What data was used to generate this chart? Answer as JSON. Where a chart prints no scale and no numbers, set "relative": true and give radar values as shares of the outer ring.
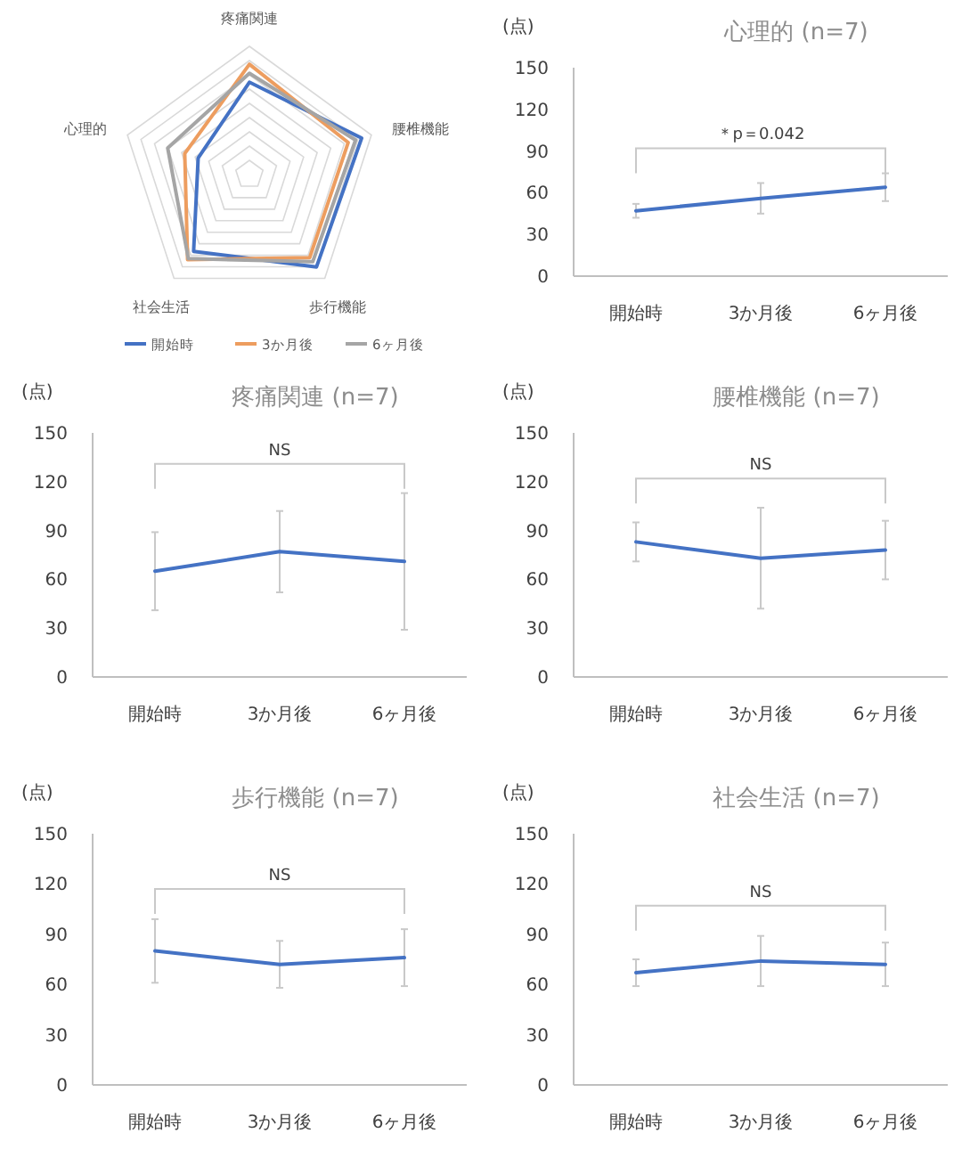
{
  "chart_data": [
    {
      "type": "radar",
      "categories": [
        "疼痛関連",
        "腰椎機能",
        "歩行機能",
        "社会生活",
        "心理的"
      ],
      "relative": true,
      "grid": true,
      "legend": "bottom",
      "series": [
        {
          "name": "開始時",
          "color": "#4472c4",
          "values": [
            0.72,
            0.92,
            0.89,
            0.74,
            0.42
          ]
        },
        {
          "name": "3か月後",
          "color": "#ed9d5f",
          "values": [
            0.86,
            0.81,
            0.8,
            0.82,
            0.53
          ]
        },
        {
          "name": "6ヶ月後",
          "color": "#a5a5a5",
          "values": [
            0.79,
            0.87,
            0.84,
            0.81,
            0.67
          ]
        }
      ]
    },
    {
      "type": "line",
      "title": "心理的 (n=7)",
      "ylabel": "(点)",
      "categories": [
        "開始時",
        "3か月後",
        "6ヶ月後"
      ],
      "ylim": [
        0,
        150
      ],
      "yticks": [
        0,
        30,
        60,
        90,
        120,
        150
      ],
      "annotations": [
        "＊p＝0.042"
      ],
      "series": [
        {
          "color": "#4472c4",
          "values": [
            47,
            56,
            64
          ],
          "errors": [
            5,
            11,
            10
          ]
        }
      ]
    },
    {
      "type": "line",
      "title": "疼痛関連 (n=7)",
      "ylabel": "(点)",
      "categories": [
        "開始時",
        "3か月後",
        "6ヶ月後"
      ],
      "ylim": [
        0,
        150
      ],
      "yticks": [
        0,
        30,
        60,
        90,
        120,
        150
      ],
      "annotations": [
        "NS"
      ],
      "series": [
        {
          "color": "#4472c4",
          "values": [
            65,
            77,
            71
          ],
          "errors": [
            24,
            25,
            42
          ]
        }
      ]
    },
    {
      "type": "line",
      "title": "腰椎機能 (n=7)",
      "ylabel": "(点)",
      "categories": [
        "開始時",
        "3か月後",
        "6ヶ月後"
      ],
      "ylim": [
        0,
        150
      ],
      "yticks": [
        0,
        30,
        60,
        90,
        120,
        150
      ],
      "annotations": [
        "NS"
      ],
      "series": [
        {
          "color": "#4472c4",
          "values": [
            83,
            73,
            78
          ],
          "errors": [
            12,
            31,
            18
          ]
        }
      ]
    },
    {
      "type": "line",
      "title": "歩行機能 (n=7)",
      "ylabel": "(点)",
      "categories": [
        "開始時",
        "3か月後",
        "6ヶ月後"
      ],
      "ylim": [
        0,
        150
      ],
      "yticks": [
        0,
        30,
        60,
        90,
        120,
        150
      ],
      "annotations": [
        "NS"
      ],
      "series": [
        {
          "color": "#4472c4",
          "values": [
            80,
            72,
            76
          ],
          "errors": [
            19,
            14,
            17
          ]
        }
      ]
    },
    {
      "type": "line",
      "title": "社会生活 (n=7)",
      "ylabel": "(点)",
      "categories": [
        "開始時",
        "3か月後",
        "6ヶ月後"
      ],
      "ylim": [
        0,
        150
      ],
      "yticks": [
        0,
        30,
        60,
        90,
        120,
        150
      ],
      "annotations": [
        "NS"
      ],
      "series": [
        {
          "color": "#4472c4",
          "values": [
            67,
            74,
            72
          ],
          "errors": [
            8,
            15,
            13
          ]
        }
      ]
    }
  ]
}
